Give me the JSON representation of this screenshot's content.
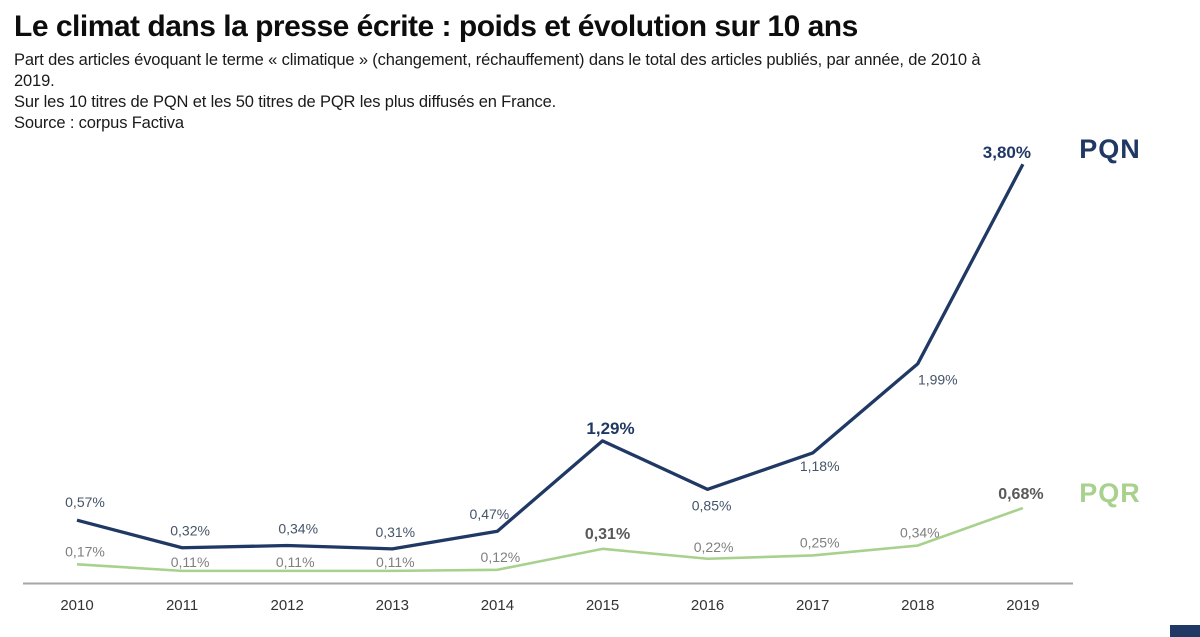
{
  "header": {
    "title": "Le climat dans la presse écrite : poids et évolution sur 10 ans",
    "subtitle_line1": "Part des articles évoquant le terme « climatique » (changement, réchauffement) dans le total des articles publiés, par année, de 2010 à",
    "subtitle_line2": "2019.",
    "subtitle_line3": "Sur les 10 titres de PQN et les 50 titres de PQR les plus diffusés en France.",
    "source": "Source : corpus Factiva"
  },
  "chart_data": {
    "type": "line",
    "title": "Le climat dans la presse écrite : poids et évolution sur 10 ans",
    "categories": [
      "2010",
      "2011",
      "2012",
      "2013",
      "2014",
      "2015",
      "2016",
      "2017",
      "2018",
      "2019"
    ],
    "unit": "%",
    "ylim": [
      0,
      4.1
    ],
    "grid": false,
    "legend_position": "right-of-line-end",
    "axis": {
      "line_color": "#a6a6a6",
      "tick_color": "#333333",
      "tick_font_size": 15
    },
    "series": [
      {
        "name": "PQN",
        "color": "#1f3864",
        "stroke_width": 3.3,
        "values": [
          0.57,
          0.32,
          0.34,
          0.31,
          0.47,
          1.29,
          0.85,
          1.18,
          1.99,
          3.8
        ],
        "labels": [
          "0,57%",
          "0,32%",
          "0,34%",
          "0,31%",
          "0,47%",
          "1,29%",
          "0,85%",
          "1,18%",
          "1,99%",
          "3,80%"
        ],
        "label_bold": [
          false,
          false,
          false,
          false,
          false,
          true,
          false,
          false,
          false,
          true
        ],
        "label_offsets": [
          [
            8,
            -13
          ],
          [
            8,
            -12
          ],
          [
            11,
            -12
          ],
          [
            3,
            -12
          ],
          [
            -8,
            -12
          ],
          [
            8,
            -7
          ],
          [
            4,
            21
          ],
          [
            7,
            18
          ],
          [
            20,
            21
          ],
          [
            -16,
            -6
          ]
        ],
        "label_color_regular": "#44546a",
        "label_color_bold": "#1f3864",
        "label_size_regular": 14,
        "label_size_bold": 17,
        "legend_font_size": 27
      },
      {
        "name": "PQR",
        "color": "#a9d18e",
        "stroke_width": 2.6,
        "values": [
          0.17,
          0.11,
          0.11,
          0.11,
          0.12,
          0.31,
          0.22,
          0.25,
          0.34,
          0.68
        ],
        "labels": [
          "0,17%",
          "0,11%",
          "0,11%",
          "0,11%",
          "0,12%",
          "0,31%",
          "0,22%",
          "0,25%",
          "0,34%",
          "0,68%"
        ],
        "label_bold": [
          false,
          false,
          false,
          false,
          false,
          true,
          false,
          false,
          false,
          true
        ],
        "label_offsets": [
          [
            8,
            -8
          ],
          [
            8,
            -4
          ],
          [
            8,
            -4
          ],
          [
            3,
            -4
          ],
          [
            3,
            -8
          ],
          [
            5,
            -10
          ],
          [
            6,
            -7
          ],
          [
            7,
            -8
          ],
          [
            2,
            -8
          ],
          [
            -2,
            -9
          ]
        ],
        "label_color_regular": "#7f7f7f",
        "label_color_bold": "#595959",
        "label_size_regular": 14,
        "label_size_bold": 16,
        "legend_font_size": 27
      }
    ]
  },
  "footer": {
    "accent_color": "#1f3864"
  }
}
